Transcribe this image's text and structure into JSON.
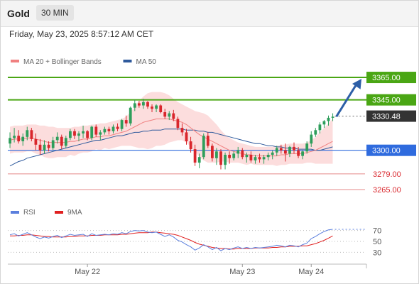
{
  "header": {
    "symbol": "Gold",
    "timeframe": "30 MIN"
  },
  "datetime": "Friday, May 23, 2025 8:57:12 AM CET",
  "colors": {
    "up": "#2e9e5b",
    "down": "#d9262c",
    "green_line": "#4aa614",
    "blue_line": "#2f6bde",
    "red_line": "#e58a8a",
    "arrow": "#2d5fa7",
    "ma20": "#f08080",
    "ma50": "#2f5a9c",
    "band": "#fbd5d5",
    "rsi": "#5b7fdd",
    "rsi_ma": "#e02020"
  },
  "chart_data": [
    {
      "type": "candlestick",
      "legend": [
        {
          "name": "MA 20 + Bollinger Bands",
          "color": "#f08080"
        },
        {
          "name": "MA 50",
          "color": "#2f5a9c"
        }
      ],
      "ylim": [
        3258,
        3372
      ],
      "levels": [
        {
          "value": 3365.0,
          "label": "3365.00",
          "kind": "resistance",
          "style": "green-box"
        },
        {
          "value": 3345.0,
          "label": "3345.00",
          "kind": "resistance",
          "style": "green-box"
        },
        {
          "value": 3330.48,
          "label": "3330.48",
          "kind": "last-price",
          "style": "dark-box"
        },
        {
          "value": 3300.0,
          "label": "3300.00",
          "kind": "pivot",
          "style": "blue-box"
        },
        {
          "value": 3279.0,
          "label": "3279.00",
          "kind": "support",
          "style": "red-text"
        },
        {
          "value": 3265.0,
          "label": "3265.00",
          "kind": "support",
          "style": "red-text"
        }
      ],
      "arrow": {
        "from": 3330,
        "to": 3365,
        "direction": "up"
      },
      "candles": [
        [
          3306,
          3316,
          3302,
          3311
        ],
        [
          3311,
          3320,
          3307,
          3313
        ],
        [
          3313,
          3318,
          3306,
          3308
        ],
        [
          3308,
          3315,
          3304,
          3312
        ],
        [
          3312,
          3321,
          3309,
          3318
        ],
        [
          3318,
          3320,
          3308,
          3310
        ],
        [
          3310,
          3315,
          3300,
          3305
        ],
        [
          3305,
          3310,
          3296,
          3300
        ],
        [
          3300,
          3309,
          3297,
          3305
        ],
        [
          3305,
          3308,
          3299,
          3302
        ],
        [
          3302,
          3312,
          3300,
          3309
        ],
        [
          3309,
          3316,
          3306,
          3312
        ],
        [
          3312,
          3314,
          3301,
          3304
        ],
        [
          3304,
          3313,
          3302,
          3311
        ],
        [
          3311,
          3319,
          3309,
          3317
        ],
        [
          3317,
          3319,
          3310,
          3313
        ],
        [
          3313,
          3317,
          3308,
          3315
        ],
        [
          3315,
          3322,
          3311,
          3317
        ],
        [
          3317,
          3318,
          3309,
          3311
        ],
        [
          3311,
          3322,
          3309,
          3321
        ],
        [
          3321,
          3323,
          3312,
          3314
        ],
        [
          3314,
          3318,
          3309,
          3316
        ],
        [
          3316,
          3321,
          3314,
          3319
        ],
        [
          3319,
          3321,
          3314,
          3317
        ],
        [
          3317,
          3323,
          3315,
          3321
        ],
        [
          3321,
          3324,
          3317,
          3319
        ],
        [
          3319,
          3328,
          3317,
          3327
        ],
        [
          3327,
          3331,
          3321,
          3324
        ],
        [
          3324,
          3339,
          3322,
          3338
        ],
        [
          3338,
          3345,
          3335,
          3342
        ],
        [
          3342,
          3344,
          3338,
          3340
        ],
        [
          3340,
          3346,
          3337,
          3343
        ],
        [
          3343,
          3344,
          3337,
          3339
        ],
        [
          3339,
          3341,
          3334,
          3337
        ],
        [
          3337,
          3341,
          3334,
          3340
        ],
        [
          3340,
          3341,
          3333,
          3334
        ],
        [
          3334,
          3337,
          3328,
          3330
        ],
        [
          3330,
          3335,
          3327,
          3333
        ],
        [
          3333,
          3336,
          3326,
          3328
        ],
        [
          3328,
          3330,
          3318,
          3320
        ],
        [
          3320,
          3324,
          3313,
          3316
        ],
        [
          3316,
          3319,
          3305,
          3308
        ],
        [
          3308,
          3312,
          3298,
          3301
        ],
        [
          3301,
          3305,
          3286,
          3289
        ],
        [
          3289,
          3297,
          3284,
          3294
        ],
        [
          3294,
          3315,
          3292,
          3313
        ],
        [
          3313,
          3316,
          3302,
          3304
        ],
        [
          3304,
          3306,
          3290,
          3293
        ],
        [
          3293,
          3302,
          3287,
          3299
        ],
        [
          3299,
          3301,
          3283,
          3287
        ],
        [
          3287,
          3298,
          3283,
          3296
        ],
        [
          3296,
          3299,
          3288,
          3293
        ],
        [
          3293,
          3299,
          3291,
          3297
        ],
        [
          3297,
          3303,
          3293,
          3300
        ],
        [
          3300,
          3302,
          3292,
          3294
        ],
        [
          3294,
          3298,
          3289,
          3296
        ],
        [
          3296,
          3299,
          3289,
          3291
        ],
        [
          3291,
          3296,
          3288,
          3294
        ],
        [
          3294,
          3297,
          3289,
          3292
        ],
        [
          3292,
          3296,
          3288,
          3294
        ],
        [
          3294,
          3298,
          3291,
          3296
        ],
        [
          3296,
          3300,
          3292,
          3298
        ],
        [
          3298,
          3304,
          3295,
          3302
        ],
        [
          3302,
          3305,
          3297,
          3300
        ],
        [
          3300,
          3306,
          3290,
          3297
        ],
        [
          3297,
          3304,
          3294,
          3303
        ],
        [
          3303,
          3307,
          3297,
          3300
        ],
        [
          3300,
          3303,
          3293,
          3295
        ],
        [
          3295,
          3300,
          3292,
          3299
        ],
        [
          3299,
          3308,
          3297,
          3306
        ],
        [
          3306,
          3317,
          3303,
          3314
        ],
        [
          3314,
          3320,
          3312,
          3318
        ],
        [
          3318,
          3325,
          3315,
          3323
        ],
        [
          3323,
          3327,
          3320,
          3326
        ],
        [
          3326,
          3331,
          3322,
          3329
        ],
        [
          3329,
          3333,
          3326,
          3330
        ]
      ],
      "ma20": [
        3309,
        3310,
        3310,
        3310,
        3311,
        3311,
        3310,
        3309,
        3308,
        3307,
        3307,
        3307,
        3307,
        3307,
        3308,
        3308,
        3309,
        3310,
        3310,
        3311,
        3312,
        3312,
        3313,
        3313,
        3314,
        3315,
        3316,
        3317,
        3319,
        3321,
        3323,
        3325,
        3326,
        3327,
        3328,
        3328,
        3328,
        3328,
        3327,
        3326,
        3325,
        3323,
        3320,
        3317,
        3314,
        3312,
        3310,
        3308,
        3306,
        3304,
        3302,
        3300,
        3299,
        3298,
        3297,
        3296,
        3296,
        3295,
        3295,
        3295,
        3295,
        3295,
        3295,
        3296,
        3296,
        3297,
        3297,
        3297,
        3297,
        3298,
        3299,
        3300,
        3302,
        3304,
        3306,
        3308
      ],
      "bb_upper": [
        3321,
        3322,
        3322,
        3322,
        3323,
        3323,
        3323,
        3322,
        3322,
        3321,
        3321,
        3320,
        3320,
        3320,
        3320,
        3321,
        3321,
        3322,
        3322,
        3323,
        3323,
        3324,
        3324,
        3325,
        3326,
        3327,
        3328,
        3330,
        3334,
        3339,
        3344,
        3348,
        3351,
        3352,
        3352,
        3352,
        3351,
        3349,
        3346,
        3343,
        3341,
        3339,
        3337,
        3335,
        3334,
        3333,
        3331,
        3327,
        3323,
        3318,
        3314,
        3311,
        3309,
        3307,
        3306,
        3305,
        3304,
        3303,
        3303,
        3303,
        3303,
        3303,
        3304,
        3305,
        3305,
        3306,
        3306,
        3306,
        3306,
        3307,
        3309,
        3312,
        3316,
        3320,
        3324,
        3328
      ],
      "bb_lower": [
        3297,
        3298,
        3298,
        3298,
        3299,
        3299,
        3297,
        3296,
        3294,
        3293,
        3293,
        3294,
        3294,
        3294,
        3296,
        3295,
        3297,
        3298,
        3298,
        3299,
        3301,
        3300,
        3302,
        3301,
        3302,
        3303,
        3304,
        3304,
        3304,
        3303,
        3302,
        3302,
        3301,
        3302,
        3304,
        3304,
        3305,
        3307,
        3308,
        3309,
        3309,
        3307,
        3303,
        3299,
        3294,
        3291,
        3289,
        3289,
        3289,
        3290,
        3290,
        3289,
        3289,
        3289,
        3288,
        3287,
        3288,
        3287,
        3287,
        3287,
        3287,
        3287,
        3286,
        3287,
        3287,
        3288,
        3288,
        3288,
        3288,
        3289,
        3289,
        3288,
        3288,
        3288,
        3288,
        3288
      ],
      "ma50": [
        3286,
        3288,
        3290,
        3291,
        3293,
        3294,
        3295,
        3296,
        3297,
        3298,
        3299,
        3300,
        3301,
        3302,
        3303,
        3304,
        3305,
        3306,
        3307,
        3308,
        3309,
        3309,
        3310,
        3311,
        3312,
        3313,
        3313,
        3314,
        3315,
        3316,
        3316,
        3317,
        3317,
        3318,
        3318,
        3318,
        3319,
        3319,
        3319,
        3319,
        3319,
        3318,
        3318,
        3318,
        3317,
        3317,
        3316,
        3316,
        3315,
        3314,
        3313,
        3312,
        3311,
        3310,
        3309,
        3308,
        3307,
        3306,
        3306,
        3305,
        3304,
        3304,
        3303,
        3303,
        3302,
        3302,
        3302,
        3301,
        3301,
        3301,
        3301,
        3300,
        3300,
        3301,
        3302,
        3303
      ],
      "x_ticks": [
        {
          "index": 18,
          "label": "May 22"
        },
        {
          "index": 54,
          "label": "May 23"
        },
        {
          "index": 70,
          "label": "May 24"
        }
      ],
      "projection_slots": 7
    },
    {
      "type": "line",
      "legend": [
        {
          "name": "RSI",
          "color": "#5b7fdd"
        },
        {
          "name": "9MA",
          "color": "#e02020"
        }
      ],
      "ylim": [
        15,
        85
      ],
      "y_ticks": [
        70,
        50,
        30
      ],
      "dotted_levels": [
        70,
        50,
        30
      ],
      "rsi": [
        62,
        64,
        60,
        63,
        66,
        62,
        58,
        55,
        58,
        56,
        59,
        61,
        57,
        60,
        63,
        61,
        62,
        63,
        59,
        64,
        61,
        62,
        63,
        62,
        64,
        63,
        66,
        64,
        68,
        70,
        69,
        70,
        67,
        66,
        67,
        63,
        59,
        62,
        58,
        52,
        49,
        44,
        40,
        34,
        38,
        44,
        40,
        35,
        39,
        33,
        37,
        35,
        38,
        40,
        37,
        39,
        37,
        39,
        38,
        39,
        40,
        41,
        43,
        42,
        40,
        43,
        42,
        40,
        44,
        47,
        55,
        59,
        64,
        68,
        71,
        72
      ],
      "rsi_ma": [
        60,
        60,
        61,
        61,
        62,
        62,
        61,
        60,
        59,
        59,
        58,
        58,
        58,
        58,
        59,
        59,
        60,
        60,
        60,
        61,
        61,
        61,
        62,
        62,
        62,
        62,
        63,
        63,
        64,
        65,
        66,
        66,
        66,
        67,
        67,
        66,
        65,
        64,
        63,
        61,
        58,
        55,
        52,
        48,
        45,
        43,
        41,
        39,
        38,
        37,
        37,
        36,
        36,
        37,
        37,
        37,
        37,
        38,
        38,
        38,
        38,
        39,
        39,
        40,
        40,
        41,
        41,
        41,
        42,
        42,
        44,
        46,
        49,
        52,
        56,
        60
      ],
      "rsi_projection_value": 72
    }
  ]
}
